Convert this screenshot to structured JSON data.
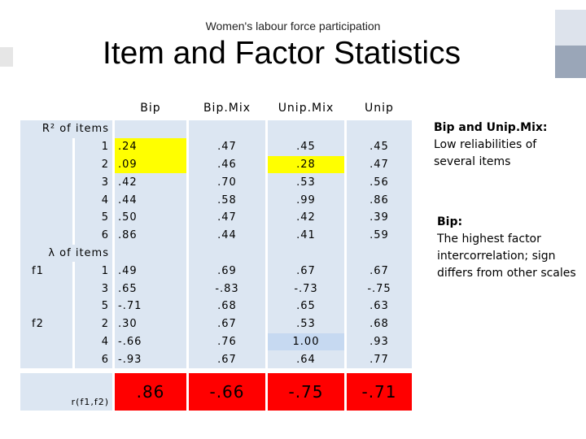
{
  "subtitle": "Women's labour force participation",
  "title": "Item and Factor Statistics",
  "columns": [
    "Bip",
    "Bip.Mix",
    "Unip.Mix",
    "Unip"
  ],
  "labels": {
    "r2_header": "R² of items",
    "lambda_header": "λ of items",
    "f1": "f1",
    "f2": "f2",
    "corr": "r(f1,f2)"
  },
  "r2_rows": [
    {
      "item": "1",
      "values": [
        ".24",
        ".47",
        ".45",
        ".45"
      ]
    },
    {
      "item": "2",
      "values": [
        ".09",
        ".46",
        ".28",
        ".47"
      ]
    },
    {
      "item": "3",
      "values": [
        ".42",
        ".70",
        ".53",
        ".56"
      ]
    },
    {
      "item": "4",
      "values": [
        ".44",
        ".58",
        ".99",
        ".86"
      ]
    },
    {
      "item": "5",
      "values": [
        ".50",
        ".47",
        ".42",
        ".39"
      ]
    },
    {
      "item": "6",
      "values": [
        ".86",
        ".44",
        ".41",
        ".59"
      ]
    }
  ],
  "lambda_rows": [
    {
      "factor": "f1",
      "item": "1",
      "values": [
        ".49",
        ".69",
        ".67",
        ".67"
      ]
    },
    {
      "factor": "",
      "item": "3",
      "values": [
        ".65",
        "-.83",
        "-.73",
        "-.75"
      ]
    },
    {
      "factor": "",
      "item": "5",
      "values": [
        "-.71",
        ".68",
        ".65",
        ".63"
      ]
    },
    {
      "factor": "f2",
      "item": "2",
      "values": [
        ".30",
        ".67",
        ".53",
        ".68"
      ]
    },
    {
      "factor": "",
      "item": "4",
      "values": [
        "-.66",
        ".76",
        "1.00",
        ".93"
      ]
    },
    {
      "factor": "",
      "item": "6",
      "values": [
        "-.93",
        ".67",
        ".64",
        ".77"
      ]
    }
  ],
  "correlation": [
    ".86",
    "-.66",
    "-.75",
    "-.71"
  ],
  "highlight_colors": {
    "yellow": "#ffff00",
    "light_blue": "#c6d9f1",
    "red": "#ff0000",
    "cell": "#dce6f2"
  },
  "notes": {
    "note1_title": "Bip and Unip.Mix:",
    "note1_text": "Low reliabilities of several items",
    "note2_title": "Bip:",
    "note2_text": "The highest factor intercorrelation; sign differs from other scales"
  }
}
